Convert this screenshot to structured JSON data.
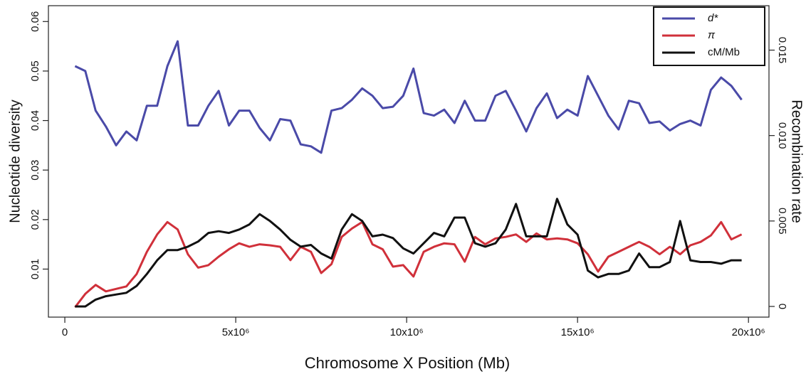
{
  "chart_data": {
    "type": "line",
    "xlabel": "Chromosome X Position (Mb)",
    "ylabel": "Nucleotide diversity",
    "y2label": "Recombination rate",
    "x": [
      300000,
      600000,
      900000,
      1200000,
      1500000,
      1800000,
      2100000,
      2400000,
      2700000,
      3000000,
      3300000,
      3600000,
      3900000,
      4200000,
      4500000,
      4800000,
      5100000,
      5400000,
      5700000,
      6000000,
      6300000,
      6600000,
      6900000,
      7200000,
      7500000,
      7800000,
      8100000,
      8400000,
      8700000,
      9000000,
      9300000,
      9600000,
      9900000,
      10200000,
      10500000,
      10800000,
      11100000,
      11400000,
      11700000,
      12000000,
      12300000,
      12600000,
      12900000,
      13200000,
      13500000,
      13800000,
      14100000,
      14400000,
      14700000,
      15000000,
      15300000,
      15600000,
      15900000,
      16200000,
      16500000,
      16800000,
      17100000,
      17400000,
      17700000,
      18000000,
      18300000,
      18600000,
      18900000,
      19200000,
      19500000,
      19800000
    ],
    "series": [
      {
        "name": "d*",
        "color": "#4a4aa8",
        "values": [
          0.051,
          0.05,
          0.042,
          0.0388,
          0.035,
          0.0378,
          0.036,
          0.043,
          0.043,
          0.051,
          0.056,
          0.039,
          0.039,
          0.043,
          0.046,
          0.039,
          0.042,
          0.042,
          0.0385,
          0.036,
          0.0403,
          0.04,
          0.0352,
          0.0348,
          0.0335,
          0.042,
          0.0425,
          0.0442,
          0.0465,
          0.045,
          0.0425,
          0.0428,
          0.045,
          0.0505,
          0.0415,
          0.041,
          0.0422,
          0.0395,
          0.044,
          0.04,
          0.04,
          0.045,
          0.046,
          0.042,
          0.0378,
          0.0425,
          0.0455,
          0.0405,
          0.0422,
          0.041,
          0.049,
          0.045,
          0.041,
          0.0382,
          0.044,
          0.0435,
          0.0395,
          0.0398,
          0.038,
          0.0393,
          0.04,
          0.039,
          0.0462,
          0.0487,
          0.047,
          0.0442
        ]
      },
      {
        "name": "π",
        "color": "#d0303a",
        "values": [
          0.0023,
          0.005,
          0.0068,
          0.0055,
          0.006,
          0.0065,
          0.009,
          0.0135,
          0.017,
          0.0195,
          0.018,
          0.013,
          0.0103,
          0.0108,
          0.0125,
          0.014,
          0.0152,
          0.0145,
          0.015,
          0.0148,
          0.0145,
          0.0118,
          0.0145,
          0.0135,
          0.0092,
          0.011,
          0.0165,
          0.0182,
          0.0195,
          0.015,
          0.014,
          0.0105,
          0.0108,
          0.0085,
          0.0135,
          0.0145,
          0.0152,
          0.015,
          0.0115,
          0.0165,
          0.015,
          0.0162,
          0.0165,
          0.017,
          0.0155,
          0.0172,
          0.016,
          0.0162,
          0.016,
          0.0152,
          0.013,
          0.0095,
          0.0125,
          0.0135,
          0.0145,
          0.0155,
          0.0145,
          0.013,
          0.0145,
          0.013,
          0.0148,
          0.0155,
          0.0168,
          0.0195,
          0.016,
          0.017
        ]
      },
      {
        "name": "cM/Mb",
        "color": "#111111",
        "axis": "y2",
        "values": [
          0,
          0,
          0.0004,
          0.0006,
          0.0007,
          0.0008,
          0.0012,
          0.0019,
          0.0027,
          0.0033,
          0.0033,
          0.0035,
          0.0038,
          0.0043,
          0.0044,
          0.0043,
          0.0045,
          0.0048,
          0.0054,
          0.005,
          0.0045,
          0.0039,
          0.0035,
          0.0036,
          0.0031,
          0.0028,
          0.0045,
          0.0054,
          0.005,
          0.0041,
          0.0042,
          0.004,
          0.0034,
          0.0031,
          0.0037,
          0.0043,
          0.0041,
          0.0052,
          0.0052,
          0.0037,
          0.0035,
          0.0037,
          0.0045,
          0.006,
          0.0041,
          0.0041,
          0.0041,
          0.0063,
          0.0048,
          0.0042,
          0.0021,
          0.0017,
          0.0019,
          0.0019,
          0.0021,
          0.0031,
          0.0023,
          0.0023,
          0.0026,
          0.005,
          0.0027,
          0.0026,
          0.0026,
          0.0025,
          0.0027,
          0.0027
        ]
      }
    ],
    "xlim": [
      -480000,
      20600000
    ],
    "xticks": [
      0,
      {
        "value": 5000000,
        "label": "5x10⁶"
      },
      {
        "value": 10000000,
        "label": "10x10⁶"
      },
      {
        "value": 15000000,
        "label": "15x10⁶"
      },
      {
        "value": 20000000,
        "label": "20x10⁶"
      }
    ],
    "ylim": [
      0.0003,
      0.0632
    ],
    "yticks": [
      0.01,
      0.02,
      0.03,
      0.04,
      0.05,
      0.06
    ],
    "y2lim": [
      -0.000625,
      0.0176
    ],
    "y2ticks": [
      0,
      0.005,
      {
        "value": 0.01,
        "label": "0.010"
      },
      0.015
    ],
    "legend": "top-right"
  }
}
